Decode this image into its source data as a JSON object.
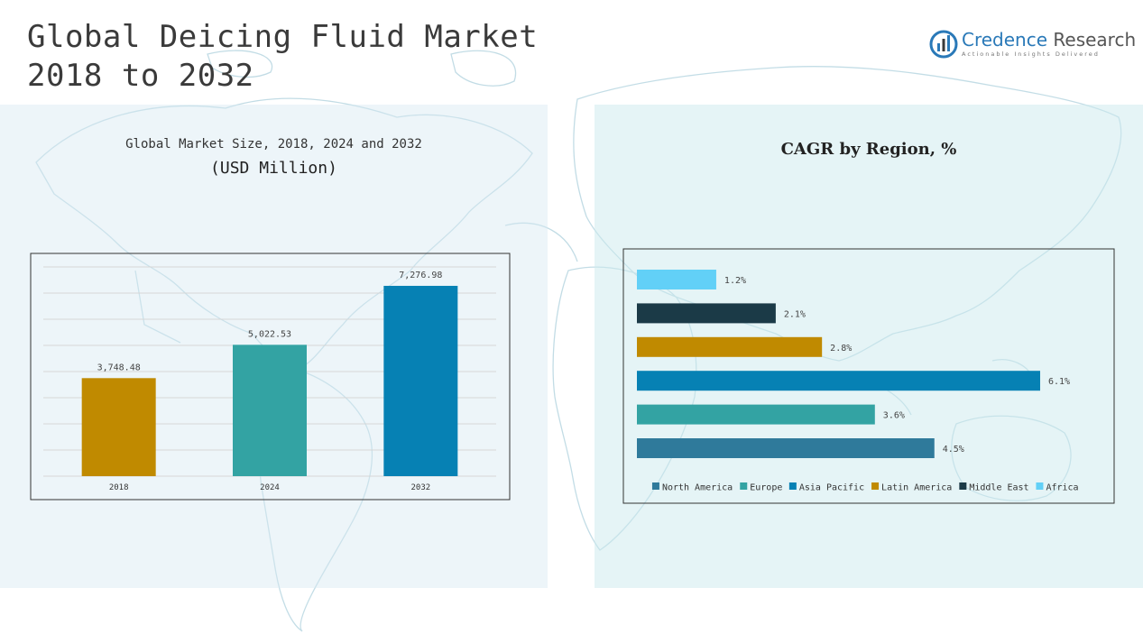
{
  "page": {
    "title_line1": "Global Deicing Fluid Market",
    "title_line2": "2018 to 2032",
    "logo_name_part1": "Credence",
    "logo_name_part2": "Research",
    "logo_tagline": "Actionable Insights Delivered",
    "logo_icon": "bar-chart-logo-icon"
  },
  "colors": {
    "gold": "#c08a00",
    "teal": "#33a3a3",
    "blue": "#0681b4",
    "dark_teal": "#1b3a47",
    "light_blue": "#62d0f7",
    "steel_blue": "#2f7a9b"
  },
  "chart_data": [
    {
      "type": "bar",
      "title": "Global Market Size, 2018, 2024 and 2032",
      "subtitle": "(USD Million)",
      "categories": [
        "2018",
        "2024",
        "2032"
      ],
      "values": [
        3748.48,
        5022.53,
        7276.98
      ],
      "value_labels": [
        "3,748.48",
        "5,022.53",
        "7,276.98"
      ],
      "colors": [
        "#c08a00",
        "#33a3a3",
        "#0681b4"
      ],
      "ylim": [
        0,
        8000
      ],
      "grid": true,
      "legend": "none"
    },
    {
      "type": "bar",
      "orientation": "horizontal",
      "title": "CAGR by Region, %",
      "categories": [
        "Africa",
        "Middle East",
        "Latin America",
        "Asia Pacific",
        "Europe",
        "North America"
      ],
      "values": [
        1.2,
        2.1,
        2.8,
        6.1,
        3.6,
        4.5
      ],
      "value_labels": [
        "1.2%",
        "2.1%",
        "2.8%",
        "6.1%",
        "3.6%",
        "4.5%"
      ],
      "colors": [
        "#62d0f7",
        "#1b3a47",
        "#c08a00",
        "#0681b4",
        "#33a3a3",
        "#2f7a9b"
      ],
      "legend_entries": [
        "North America",
        "Europe",
        "Asia Pacific",
        "Latin America",
        "Middle East",
        "Africa"
      ],
      "legend_colors": [
        "#2f7a9b",
        "#33a3a3",
        "#0681b4",
        "#c08a00",
        "#1b3a47",
        "#62d0f7"
      ],
      "xlim": [
        0,
        6.1
      ],
      "grid": false,
      "legend": "bottom"
    }
  ]
}
